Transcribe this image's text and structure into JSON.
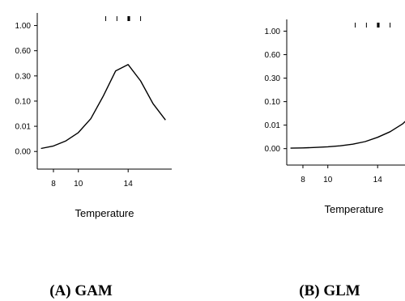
{
  "chart_data": [
    {
      "type": "line",
      "caption": "(A) GAM",
      "xlabel": "Temperature",
      "xticks": [
        8,
        10,
        14
      ],
      "xlim": [
        6.7,
        17.5
      ],
      "yticks": [
        {
          "label": "0.00",
          "pos": 0
        },
        {
          "label": "0.01",
          "pos": 1
        },
        {
          "label": "0.10",
          "pos": 2
        },
        {
          "label": "0.30",
          "pos": 3
        },
        {
          "label": "0.60",
          "pos": 4
        },
        {
          "label": "1.00",
          "pos": 5
        }
      ],
      "ylim": [
        -0.7,
        5.5
      ],
      "rug": [
        12.2,
        13.1,
        14.0,
        14.1,
        15.0
      ],
      "series": [
        {
          "x": [
            7.0,
            8.0,
            9.0,
            10.0,
            11.0,
            12.0,
            13.0,
            14.0,
            15.0,
            16.0,
            17.0
          ],
          "y": [
            0.12,
            0.22,
            0.42,
            0.75,
            1.3,
            2.2,
            3.2,
            3.45,
            2.8,
            1.9,
            1.25
          ]
        }
      ],
      "grid": false
    },
    {
      "type": "line",
      "caption": "(B) GLM",
      "xlabel": "Temperature",
      "xticks": [
        8,
        10,
        14
      ],
      "xlim": [
        6.7,
        17.5
      ],
      "yticks": [
        {
          "label": "0.00",
          "pos": 0
        },
        {
          "label": "0.01",
          "pos": 1
        },
        {
          "label": "0.10",
          "pos": 2
        },
        {
          "label": "0.30",
          "pos": 3
        },
        {
          "label": "0.60",
          "pos": 4
        },
        {
          "label": "1.00",
          "pos": 5
        }
      ],
      "ylim": [
        -0.7,
        5.5
      ],
      "rug": [
        12.2,
        13.1,
        14.0,
        14.1,
        15.0
      ],
      "series": [
        {
          "x": [
            7.0,
            8.0,
            9.0,
            10.0,
            11.0,
            12.0,
            13.0,
            14.0,
            15.0,
            16.0,
            17.0,
            17.5
          ],
          "y": [
            0.02,
            0.03,
            0.05,
            0.08,
            0.12,
            0.19,
            0.3,
            0.48,
            0.72,
            1.05,
            1.55,
            1.85
          ]
        }
      ],
      "grid": false
    }
  ]
}
